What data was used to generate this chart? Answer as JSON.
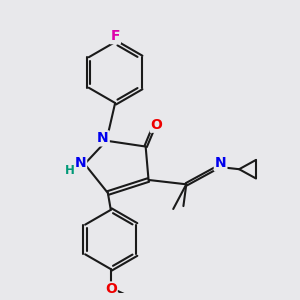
{
  "bg_color": "#e8e8eb",
  "bond_color": "#1a1a1a",
  "bond_width": 1.5,
  "atom_colors": {
    "F": "#dd00aa",
    "N": "#0000ee",
    "O": "#ee0000",
    "H": "#009977",
    "C": "#1a1a1a"
  },
  "font_size_atom": 10,
  "font_size_small": 8.5
}
